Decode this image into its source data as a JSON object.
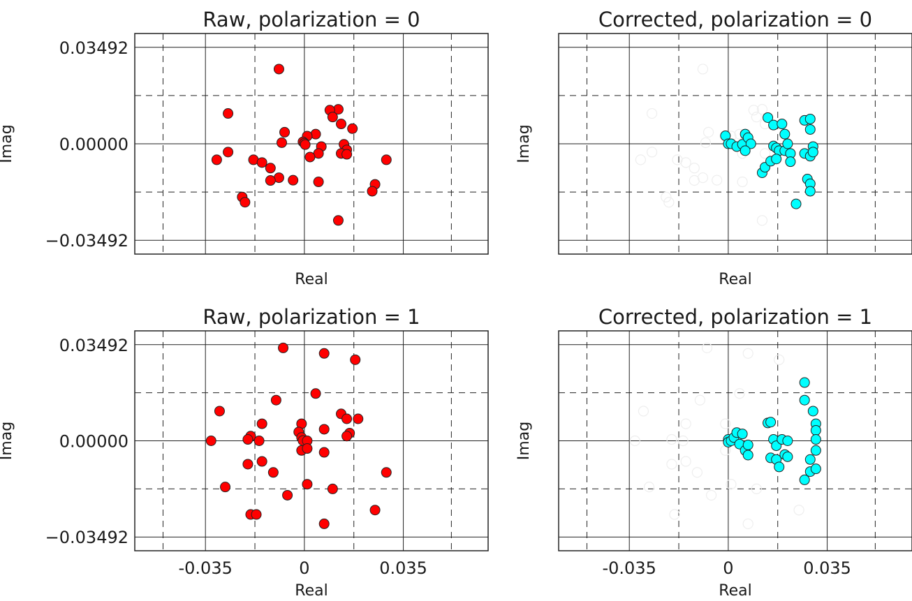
{
  "figure": {
    "background": "#ffffff",
    "raw_color": "#ff0000",
    "corrected_color": "#00ffff",
    "faded_color": "#eeeeee",
    "edge_color": "#222222"
  },
  "chart_data": [
    {
      "type": "scatter",
      "title": "Raw,  polarization = 0",
      "xlabel": "Real",
      "ylabel": "Imag",
      "xlim": [
        -0.06,
        0.065
      ],
      "ylim": [
        -0.04,
        0.04
      ],
      "xticks": [],
      "yticks": [
        "0.03492",
        "0.00000",
        "−0.03492"
      ],
      "ytick_values": [
        0.03492,
        0.0,
        -0.03492
      ],
      "grid": true,
      "series": [
        {
          "color": "#ff0000",
          "points": [
            [
              -0.009,
              0.0271
            ],
            [
              -0.027,
              0.011
            ],
            [
              0.012,
              0.0125
            ],
            [
              0.009,
              0.0122
            ],
            [
              0.01,
              0.0097
            ],
            [
              0.013,
              0.0072
            ],
            [
              0.017,
              0.0055
            ],
            [
              -0.007,
              0.0042
            ],
            [
              0.004,
              0.0035
            ],
            [
              0.001,
              0.0028
            ],
            [
              -0.008,
              0.0004
            ],
            [
              -0.0005,
              0.0007
            ],
            [
              0.0,
              0.0002
            ],
            [
              0.0003,
              -0.0003
            ],
            [
              0.006,
              -0.001
            ],
            [
              0.014,
              -0.0002
            ],
            [
              0.015,
              -0.0022
            ],
            [
              0.013,
              -0.0035
            ],
            [
              0.015,
              -0.0038
            ],
            [
              -0.027,
              -0.003
            ],
            [
              -0.031,
              -0.0058
            ],
            [
              -0.018,
              -0.0058
            ],
            [
              -0.015,
              -0.0068
            ],
            [
              -0.012,
              -0.0088
            ],
            [
              0.005,
              -0.0035
            ],
            [
              0.002,
              -0.0048
            ],
            [
              0.029,
              -0.0058
            ],
            [
              -0.009,
              -0.0123
            ],
            [
              -0.012,
              -0.0133
            ],
            [
              -0.004,
              -0.0132
            ],
            [
              0.005,
              -0.0138
            ],
            [
              0.025,
              -0.0147
            ],
            [
              0.024,
              -0.0172
            ],
            [
              -0.022,
              -0.0193
            ],
            [
              -0.021,
              -0.0212
            ],
            [
              0.012,
              -0.0278
            ]
          ]
        }
      ]
    },
    {
      "type": "scatter",
      "title": "Corrected, polarization = 0",
      "xlabel": "Real",
      "ylabel": "Imag",
      "xlim": [
        -0.06,
        0.065
      ],
      "ylim": [
        -0.04,
        0.04
      ],
      "xticks": [],
      "yticks": [],
      "grid": true,
      "series": [
        {
          "color": "#00ffff",
          "points": [
            [
              -0.001,
              0.0029
            ],
            [
              0.0,
              0.0
            ],
            [
              0.001,
              0.0
            ],
            [
              0.003,
              -0.001
            ],
            [
              0.005,
              -0.0002
            ],
            [
              0.006,
              0.0035
            ],
            [
              0.007,
              0.0022
            ],
            [
              0.008,
              0.0
            ],
            [
              0.006,
              -0.0025
            ],
            [
              0.012,
              -0.0105
            ],
            [
              0.013,
              -0.0085
            ],
            [
              0.014,
              0.0095
            ],
            [
              0.016,
              0.0068
            ],
            [
              0.015,
              -0.0063
            ],
            [
              0.016,
              -0.0008
            ],
            [
              0.017,
              -0.0015
            ],
            [
              0.018,
              -0.0025
            ],
            [
              0.017,
              -0.0055
            ],
            [
              0.019,
              0.0072
            ],
            [
              0.02,
              0.0035
            ],
            [
              0.02,
              -0.0025
            ],
            [
              0.022,
              -0.0035
            ],
            [
              0.021,
              0.0
            ],
            [
              0.022,
              -0.0065
            ],
            [
              0.024,
              -0.0218
            ],
            [
              0.027,
              0.0085
            ],
            [
              0.029,
              0.009
            ],
            [
              0.029,
              0.0052
            ],
            [
              0.027,
              -0.0035
            ],
            [
              0.029,
              -0.0045
            ],
            [
              0.03,
              -0.001
            ],
            [
              0.03,
              -0.003
            ],
            [
              0.028,
              -0.0128
            ],
            [
              0.029,
              -0.0145
            ],
            [
              0.029,
              -0.0172
            ]
          ]
        },
        {
          "color": "#eeeeee",
          "faded": true,
          "points": [
            [
              -0.009,
              0.0271
            ],
            [
              -0.027,
              0.011
            ],
            [
              0.012,
              0.0125
            ],
            [
              0.009,
              0.0122
            ],
            [
              0.01,
              0.0097
            ],
            [
              0.013,
              0.0072
            ],
            [
              -0.007,
              0.0042
            ],
            [
              0.004,
              0.0035
            ],
            [
              0.001,
              0.0028
            ],
            [
              -0.008,
              0.0004
            ],
            [
              0.006,
              -0.001
            ],
            [
              0.013,
              -0.0035
            ],
            [
              -0.027,
              -0.003
            ],
            [
              -0.031,
              -0.0058
            ],
            [
              -0.018,
              -0.0058
            ],
            [
              -0.015,
              -0.0068
            ],
            [
              -0.012,
              -0.0088
            ],
            [
              0.005,
              -0.0035
            ],
            [
              -0.009,
              -0.0123
            ],
            [
              -0.012,
              -0.0133
            ],
            [
              -0.004,
              -0.0132
            ],
            [
              0.005,
              -0.0138
            ],
            [
              -0.022,
              -0.0193
            ],
            [
              -0.021,
              -0.0212
            ],
            [
              0.012,
              -0.0278
            ]
          ]
        }
      ]
    },
    {
      "type": "scatter",
      "title": "Raw,  polarization = 1",
      "xlabel": "Real",
      "ylabel": "Imag",
      "xlim": [
        -0.06,
        0.065
      ],
      "ylim": [
        -0.04,
        0.04
      ],
      "xticks": [
        "-0.035",
        "0",
        "0.035"
      ],
      "xtick_values": [
        -0.035,
        0.0,
        0.035
      ],
      "yticks": [
        "0.03492",
        "0.00000",
        "−0.03492"
      ],
      "ytick_values": [
        0.03492,
        0.0,
        -0.03492
      ],
      "grid": true,
      "series": [
        {
          "color": "#ff0000",
          "points": [
            [
              -0.0075,
              0.0338
            ],
            [
              0.007,
              0.0318
            ],
            [
              0.018,
              0.0295
            ],
            [
              0.004,
              0.0172
            ],
            [
              -0.01,
              0.0148
            ],
            [
              -0.03,
              0.0108
            ],
            [
              0.013,
              0.0098
            ],
            [
              0.015,
              0.008
            ],
            [
              0.019,
              0.008
            ],
            [
              -0.015,
              0.0062
            ],
            [
              -0.001,
              0.0062
            ],
            [
              0.007,
              0.0042
            ],
            [
              -0.002,
              0.0032
            ],
            [
              0.016,
              0.0028
            ],
            [
              -0.001,
              0.0012
            ],
            [
              0.0,
              0.0
            ],
            [
              -0.0005,
              0.0001
            ],
            [
              0.001,
              0.0
            ],
            [
              -0.019,
              0.0017
            ],
            [
              -0.02,
              0.0005
            ],
            [
              -0.016,
              0.0
            ],
            [
              -0.033,
              0.0
            ],
            [
              0.015,
              0.0017
            ],
            [
              -0.001,
              -0.0035
            ],
            [
              0.001,
              -0.0028
            ],
            [
              0.007,
              -0.0042
            ],
            [
              -0.02,
              -0.0085
            ],
            [
              -0.015,
              -0.0075
            ],
            [
              -0.011,
              -0.0115
            ],
            [
              0.029,
              -0.0115
            ],
            [
              -0.028,
              -0.0168
            ],
            [
              0.001,
              -0.0158
            ],
            [
              0.01,
              -0.0175
            ],
            [
              -0.006,
              -0.0198
            ],
            [
              0.025,
              -0.0252
            ],
            [
              -0.019,
              -0.0268
            ],
            [
              -0.017,
              -0.0268
            ],
            [
              0.007,
              -0.0302
            ]
          ]
        }
      ]
    },
    {
      "type": "scatter",
      "title": "Corrected, polarization = 1",
      "xlabel": "Real",
      "ylabel": "Imag",
      "xlim": [
        -0.06,
        0.065
      ],
      "ylim": [
        -0.04,
        0.04
      ],
      "xticks": [
        "-0.035",
        "0",
        "0.035"
      ],
      "xtick_values": [
        -0.035,
        0.0,
        0.035
      ],
      "yticks": [],
      "grid": true,
      "series": [
        {
          "color": "#00ffff",
          "points": [
            [
              0.0,
              0.0005
            ],
            [
              0.0,
              -0.0005
            ],
            [
              0.001,
              0.0
            ],
            [
              0.002,
              0.0012
            ],
            [
              0.003,
              0.003
            ],
            [
              0.004,
              -0.0012
            ],
            [
              0.005,
              0.0025
            ],
            [
              0.006,
              -0.0035
            ],
            [
              0.007,
              -0.0052
            ],
            [
              0.007,
              -0.0015
            ],
            [
              0.014,
              0.0065
            ],
            [
              0.015,
              0.0068
            ],
            [
              0.016,
              0.0005
            ],
            [
              0.015,
              -0.0062
            ],
            [
              0.017,
              -0.0018
            ],
            [
              0.017,
              -0.0068
            ],
            [
              0.018,
              -0.0095
            ],
            [
              0.019,
              0.0005
            ],
            [
              0.021,
              0.0
            ],
            [
              0.02,
              -0.005
            ],
            [
              0.021,
              -0.0058
            ],
            [
              0.027,
              0.0212
            ],
            [
              0.027,
              0.0148
            ],
            [
              0.03,
              0.0108
            ],
            [
              0.031,
              0.0062
            ],
            [
              0.031,
              0.0038
            ],
            [
              0.031,
              0.0005
            ],
            [
              0.031,
              -0.0035
            ],
            [
              0.029,
              -0.0068
            ],
            [
              0.029,
              -0.0112
            ],
            [
              0.027,
              -0.0142
            ],
            [
              0.031,
              -0.0102
            ]
          ]
        },
        {
          "color": "#eeeeee",
          "faded": true,
          "points": [
            [
              -0.0075,
              0.0338
            ],
            [
              0.007,
              0.0318
            ],
            [
              0.018,
              0.0295
            ],
            [
              0.004,
              0.0172
            ],
            [
              -0.01,
              0.0148
            ],
            [
              -0.03,
              0.0108
            ],
            [
              -0.015,
              0.0062
            ],
            [
              -0.001,
              0.0062
            ],
            [
              -0.02,
              0.0005
            ],
            [
              -0.033,
              0.0
            ],
            [
              -0.016,
              0.0
            ],
            [
              -0.001,
              -0.0035
            ],
            [
              -0.02,
              -0.0085
            ],
            [
              -0.015,
              -0.0075
            ],
            [
              -0.011,
              -0.0115
            ],
            [
              -0.028,
              -0.0168
            ],
            [
              0.001,
              -0.0158
            ],
            [
              0.01,
              -0.0175
            ],
            [
              -0.006,
              -0.0198
            ],
            [
              0.025,
              -0.0252
            ],
            [
              -0.019,
              -0.0268
            ],
            [
              0.007,
              -0.0302
            ]
          ]
        }
      ]
    }
  ]
}
